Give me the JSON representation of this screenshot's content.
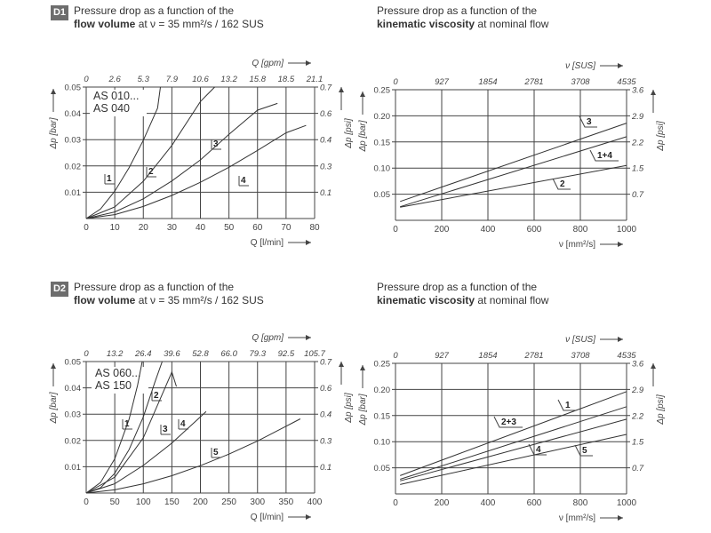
{
  "headers": {
    "d1_badge": "D1",
    "d2_badge": "D2",
    "flow_line1": "Pressure drop as a function of the",
    "flow_bold": "flow volume",
    "flow_rest": "at ν = 35 mm²/s / 162 SUS",
    "visc_line1": "Pressure drop as a function of the",
    "visc_bold": "kinematic viscosity",
    "visc_rest": "at nominal flow"
  },
  "chart_data": [
    {
      "id": "d1-flow",
      "type": "line",
      "title": "Pressure drop as a function of the flow volume at ν = 35 mm²/s / 162 SUS",
      "xlabel": "Q [l/min]",
      "xlabel_top": "Q [gpm]",
      "ylabel": "Δp [bar]",
      "ylabel_right": "Δp [psi]",
      "xlim": [
        0,
        80
      ],
      "ylim": [
        0,
        0.05
      ],
      "x_ticks": [
        "0",
        "10",
        "20",
        "30",
        "40",
        "50",
        "60",
        "70",
        "80"
      ],
      "top_ticks": [
        "0",
        "2.6",
        "5.3",
        "7.9",
        "10.6",
        "13.2",
        "15.8",
        "18.5",
        "21.1"
      ],
      "y_ticks": [
        "0.01",
        "0.02",
        "0.03",
        "0.04",
        "0.05"
      ],
      "right_ticks": [
        "0.1",
        "0.3",
        "0.4",
        "0.6",
        "0.7"
      ],
      "annotation": [
        "AS 010...",
        "AS 040"
      ],
      "series": [
        {
          "name": "1",
          "x": [
            0,
            5,
            10,
            15,
            20,
            25,
            26
          ],
          "y": [
            0,
            0.0036,
            0.0104,
            0.0193,
            0.0298,
            0.042,
            0.05
          ]
        },
        {
          "name": "2",
          "x": [
            0,
            10,
            20,
            30,
            40,
            45
          ],
          "y": [
            0,
            0.0044,
            0.0142,
            0.0278,
            0.0445,
            0.05
          ]
        },
        {
          "name": "3",
          "x": [
            0,
            10,
            20,
            30,
            40,
            50,
            60,
            67
          ],
          "y": [
            0,
            0.0025,
            0.0075,
            0.0143,
            0.0223,
            0.032,
            0.0412,
            0.0438
          ]
        },
        {
          "name": "4",
          "x": [
            0,
            10,
            20,
            30,
            40,
            50,
            60,
            70,
            77
          ],
          "y": [
            0,
            0.0015,
            0.0046,
            0.0088,
            0.0138,
            0.0195,
            0.0259,
            0.0326,
            0.0354
          ]
        }
      ]
    },
    {
      "id": "d1-visc",
      "type": "line",
      "title": "Pressure drop as a function of the kinematic viscosity at nominal flow",
      "xlabel": "ν [mm²/s]",
      "xlabel_top": "ν [SUS]",
      "ylabel": "Δp [bar]",
      "ylabel_right": "Δp [psi]",
      "xlim": [
        0,
        1000
      ],
      "ylim": [
        0,
        0.25
      ],
      "x_ticks": [
        "0",
        "200",
        "400",
        "600",
        "800",
        "1000"
      ],
      "top_ticks": [
        "0",
        "927",
        "1854",
        "2781",
        "3708",
        "4535"
      ],
      "y_ticks": [
        "0.05",
        "0.10",
        "0.15",
        "0.20",
        "0.25"
      ],
      "right_ticks": [
        "0.7",
        "1.5",
        "2.2",
        "2.9",
        "3.6"
      ],
      "series": [
        {
          "name": "3",
          "x": [
            20,
            1000
          ],
          "y": [
            0.036,
            0.186
          ]
        },
        {
          "name": "1+4",
          "x": [
            20,
            1000
          ],
          "y": [
            0.026,
            0.16
          ]
        },
        {
          "name": "2",
          "x": [
            20,
            1000
          ],
          "y": [
            0.025,
            0.105
          ]
        }
      ]
    },
    {
      "id": "d2-flow",
      "type": "line",
      "title": "Pressure drop as a function of the flow volume at ν = 35 mm²/s / 162 SUS",
      "xlabel": "Q [l/min]",
      "xlabel_top": "Q [gpm]",
      "ylabel": "Δp [bar]",
      "ylabel_right": "Δp [psi]",
      "xlim": [
        0,
        400
      ],
      "ylim": [
        0,
        0.05
      ],
      "x_ticks": [
        "0",
        "50",
        "100",
        "150",
        "200",
        "250",
        "300",
        "350",
        "400"
      ],
      "top_ticks": [
        "0",
        "13.2",
        "26.4",
        "39.6",
        "52.8",
        "66.0",
        "79.3",
        "92.5",
        "105.7"
      ],
      "y_ticks": [
        "0.01",
        "0.02",
        "0.03",
        "0.04",
        "0.05"
      ],
      "right_ticks": [
        "0.1",
        "0.3",
        "0.4",
        "0.6",
        "0.7"
      ],
      "annotation": [
        "AS 060...",
        "AS 150"
      ],
      "series": [
        {
          "name": "1",
          "x": [
            0,
            25,
            50,
            75,
            90,
            98
          ],
          "y": [
            0,
            0.004,
            0.013,
            0.028,
            0.041,
            0.05
          ]
        },
        {
          "name": "2",
          "x": [
            0,
            25,
            50,
            75,
            100,
            120,
            133
          ],
          "y": [
            0,
            0.002,
            0.0075,
            0.0165,
            0.029,
            0.042,
            0.05
          ]
        },
        {
          "name": "3",
          "x": [
            0,
            50,
            100,
            150,
            158
          ],
          "y": [
            0,
            0.006,
            0.021,
            0.046,
            0.0405
          ]
        },
        {
          "name": "4",
          "x": [
            0,
            50,
            100,
            150,
            200,
            210
          ],
          "y": [
            0,
            0.0035,
            0.0105,
            0.019,
            0.029,
            0.031
          ]
        },
        {
          "name": "5",
          "x": [
            0,
            50,
            100,
            150,
            200,
            250,
            300,
            350,
            375
          ],
          "y": [
            0,
            0.0012,
            0.0035,
            0.0066,
            0.0104,
            0.0148,
            0.0198,
            0.0254,
            0.0282
          ]
        }
      ]
    },
    {
      "id": "d2-visc",
      "type": "line",
      "title": "Pressure drop as a function of the kinematic viscosity at nominal flow",
      "xlabel": "ν [mm²/s]",
      "xlabel_top": "ν [SUS]",
      "ylabel": "Δp [bar]",
      "ylabel_right": "Δp [psi]",
      "xlim": [
        0,
        1000
      ],
      "ylim": [
        0,
        0.25
      ],
      "x_ticks": [
        "0",
        "200",
        "400",
        "600",
        "800",
        "1000"
      ],
      "top_ticks": [
        "0",
        "927",
        "1854",
        "2781",
        "3708",
        "4535"
      ],
      "y_ticks": [
        "0.05",
        "0.10",
        "0.15",
        "0.20",
        "0.25"
      ],
      "right_ticks": [
        "0.7",
        "1.5",
        "2.2",
        "2.9",
        "3.6"
      ],
      "series": [
        {
          "name": "1",
          "x": [
            20,
            1000
          ],
          "y": [
            0.035,
            0.196
          ]
        },
        {
          "name": "2+3",
          "x": [
            20,
            1000
          ],
          "y": [
            0.028,
            0.167
          ]
        },
        {
          "name": "4",
          "x": [
            20,
            1000
          ],
          "y": [
            0.025,
            0.143
          ]
        },
        {
          "name": "5",
          "x": [
            20,
            1000
          ],
          "y": [
            0.018,
            0.114
          ]
        }
      ]
    }
  ]
}
